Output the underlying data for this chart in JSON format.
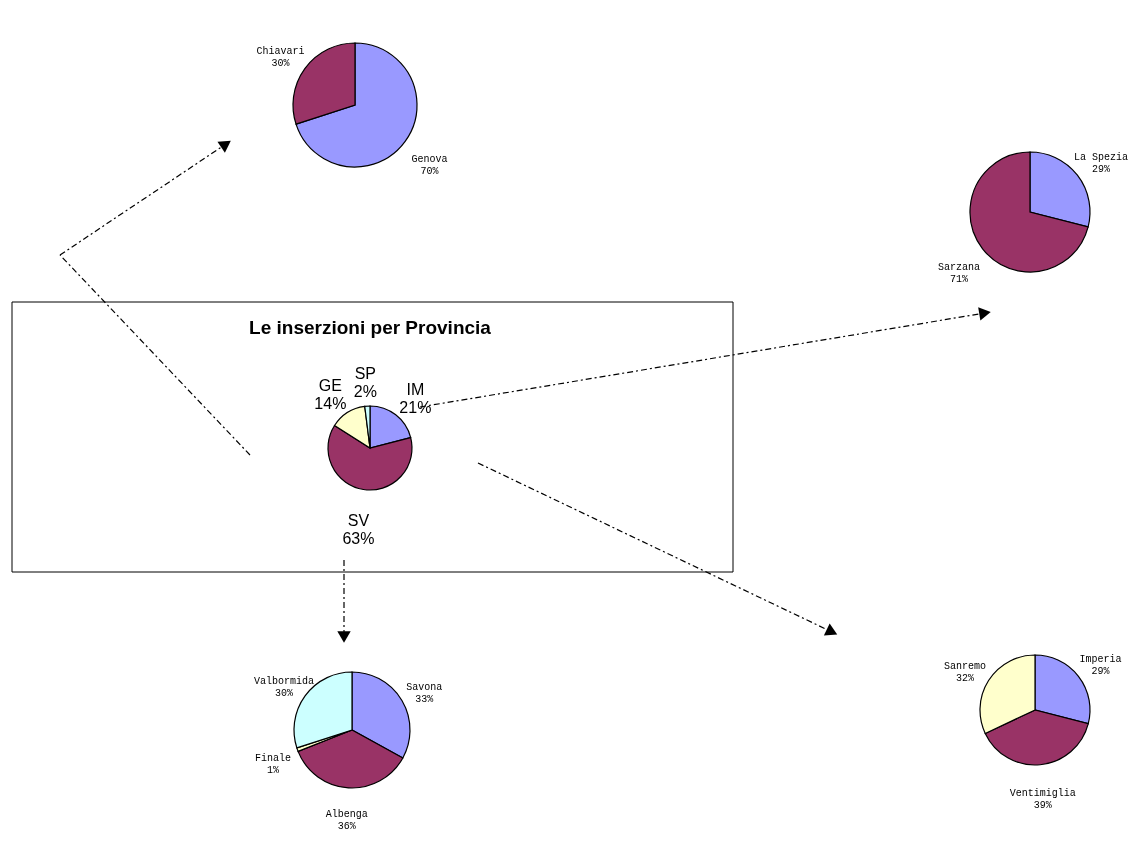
{
  "chart_data": [
    {
      "type": "pie",
      "title": "Le inserzioni per Provincia",
      "categories": [
        "IM",
        "SV",
        "GE",
        "SP"
      ],
      "values": [
        21,
        63,
        14,
        2
      ],
      "value_labels": [
        "21%",
        "63%",
        "14%",
        "2%"
      ],
      "colors": [
        "#9999ff",
        "#993366",
        "#ffffcc",
        "#ccffff"
      ]
    },
    {
      "type": "pie",
      "categories": [
        "Genova",
        "Chiavari"
      ],
      "values": [
        70,
        30
      ],
      "value_labels": [
        "70%",
        "30%"
      ],
      "colors": [
        "#9999ff",
        "#993366"
      ]
    },
    {
      "type": "pie",
      "categories": [
        "La Spezia",
        "Sarzana"
      ],
      "values": [
        29,
        71
      ],
      "value_labels": [
        "29%",
        "71%"
      ],
      "colors": [
        "#9999ff",
        "#993366"
      ]
    },
    {
      "type": "pie",
      "categories": [
        "Savona",
        "Albenga",
        "Finale",
        "Valbormida"
      ],
      "values": [
        33,
        36,
        1,
        30
      ],
      "value_labels": [
        "33%",
        "36%",
        "1%",
        "30%"
      ],
      "colors": [
        "#9999ff",
        "#993366",
        "#ffffcc",
        "#ccffff"
      ]
    },
    {
      "type": "pie",
      "categories": [
        "Imperia",
        "Ventimiglia",
        "Sanremo"
      ],
      "values": [
        29,
        39,
        32
      ],
      "value_labels": [
        "29%",
        "39%",
        "32%"
      ],
      "colors": [
        "#9999ff",
        "#993366",
        "#ffffcc"
      ]
    }
  ]
}
